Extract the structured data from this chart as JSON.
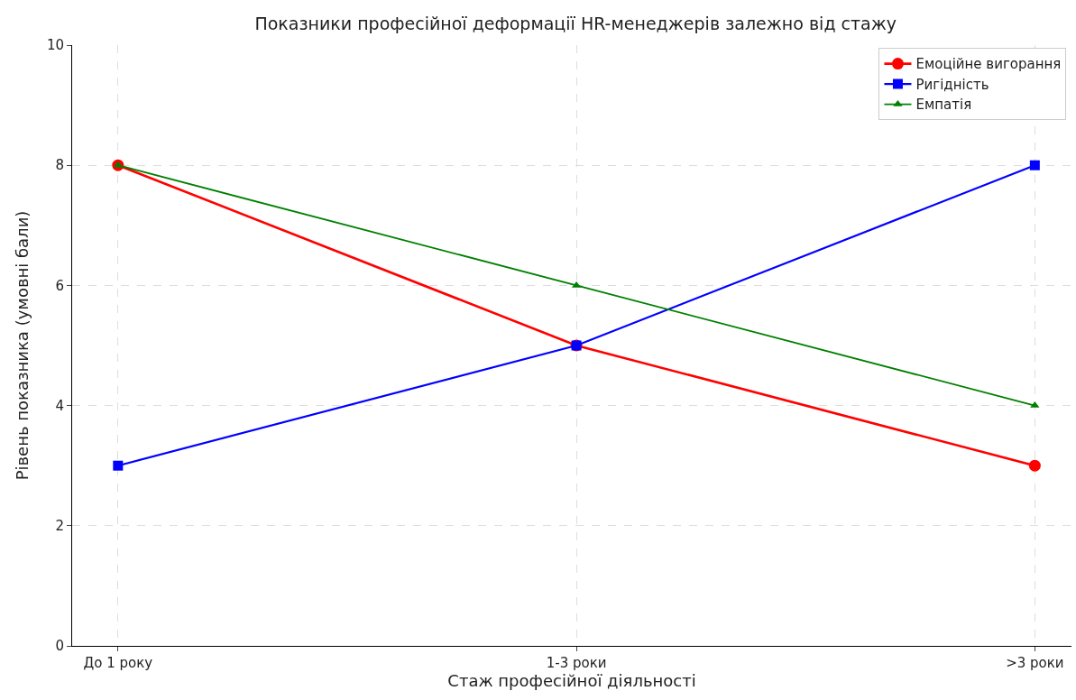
{
  "chart_data": {
    "type": "line",
    "title": "Показники професійної деформації HR-менеджерів залежно від стажу",
    "xlabel": "Стаж професійної діяльності",
    "ylabel": "Рівень показника (умовні бали)",
    "categories": [
      "До 1 року",
      "1-3 роки",
      ">3 роки"
    ],
    "series": [
      {
        "name": "Емоційне вигорання",
        "color": "#ff0000",
        "marker": "circle",
        "values": [
          8,
          5,
          3
        ]
      },
      {
        "name": "Ригідність",
        "color": "#0000ff",
        "marker": "square",
        "values": [
          3,
          5,
          8
        ]
      },
      {
        "name": "Емпатія",
        "color": "#008000",
        "marker": "triangle",
        "values": [
          8,
          6,
          4
        ]
      }
    ],
    "ylim": [
      0,
      10
    ],
    "yticks": [
      0,
      2,
      4,
      6,
      8,
      10
    ],
    "grid": true,
    "legend": "top right",
    "line_style": "solid"
  }
}
